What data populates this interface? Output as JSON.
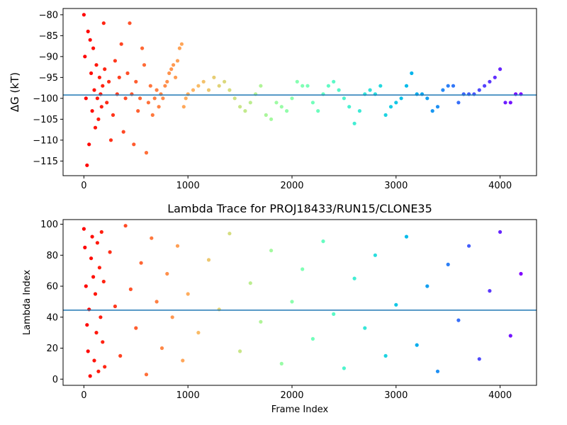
{
  "chart_data": [
    {
      "type": "scatter",
      "title": "",
      "xlabel": "",
      "ylabel": "ΔG (kT)",
      "xlim": [
        -200,
        4350
      ],
      "ylim": [
        -118.5,
        -78.5
      ],
      "xticks": [
        0,
        1000,
        2000,
        3000,
        4000
      ],
      "yticks": [
        -80,
        -85,
        -90,
        -95,
        -100,
        -105,
        -110,
        -115
      ],
      "hline": -99.2,
      "hline_color": "#1f77b4",
      "colormap": "rainbow (red at frame 0 to violet at last frame)",
      "x_range": [
        0,
        4200
      ],
      "series": [
        {
          "name": "",
          "points": [
            [
              0,
              -80
            ],
            [
              10,
              -90
            ],
            [
              20,
              -100
            ],
            [
              30,
              -116
            ],
            [
              40,
              -84
            ],
            [
              50,
              -111
            ],
            [
              60,
              -86
            ],
            [
              70,
              -94
            ],
            [
              80,
              -103
            ],
            [
              90,
              -88
            ],
            [
              100,
              -98
            ],
            [
              110,
              -107
            ],
            [
              120,
              -92
            ],
            [
              130,
              -100
            ],
            [
              140,
              -105
            ],
            [
              150,
              -95
            ],
            [
              160,
              -99
            ],
            [
              170,
              -102
            ],
            [
              180,
              -97
            ],
            [
              190,
              -82
            ],
            [
              200,
              -93
            ],
            [
              220,
              -101
            ],
            [
              240,
              -96
            ],
            [
              260,
              -110
            ],
            [
              280,
              -104
            ],
            [
              300,
              -91
            ],
            [
              320,
              -99
            ],
            [
              340,
              -95
            ],
            [
              360,
              -87
            ],
            [
              380,
              -108
            ],
            [
              400,
              -100
            ],
            [
              420,
              -94
            ],
            [
              440,
              -82
            ],
            [
              460,
              -99
            ],
            [
              480,
              -111
            ],
            [
              500,
              -96
            ],
            [
              520,
              -103
            ],
            [
              540,
              -100
            ],
            [
              560,
              -88
            ],
            [
              580,
              -92
            ],
            [
              600,
              -113
            ],
            [
              620,
              -101
            ],
            [
              640,
              -97
            ],
            [
              660,
              -104
            ],
            [
              680,
              -100
            ],
            [
              700,
              -98
            ],
            [
              720,
              -102
            ],
            [
              740,
              -99
            ],
            [
              760,
              -100
            ],
            [
              780,
              -97
            ],
            [
              800,
              -96
            ],
            [
              820,
              -94
            ],
            [
              840,
              -93
            ],
            [
              860,
              -92
            ],
            [
              880,
              -95
            ],
            [
              900,
              -91
            ],
            [
              920,
              -88
            ],
            [
              940,
              -87
            ],
            [
              960,
              -102
            ],
            [
              980,
              -100
            ],
            [
              1000,
              -99
            ],
            [
              1050,
              -98
            ],
            [
              1100,
              -97
            ],
            [
              1150,
              -96
            ],
            [
              1200,
              -98
            ],
            [
              1250,
              -95
            ],
            [
              1300,
              -97
            ],
            [
              1350,
              -96
            ],
            [
              1400,
              -98
            ],
            [
              1450,
              -100
            ],
            [
              1500,
              -102
            ],
            [
              1550,
              -103
            ],
            [
              1600,
              -101
            ],
            [
              1650,
              -99
            ],
            [
              1700,
              -97
            ],
            [
              1750,
              -104
            ],
            [
              1800,
              -105
            ],
            [
              1850,
              -101
            ],
            [
              1900,
              -102
            ],
            [
              1950,
              -103
            ],
            [
              2000,
              -100
            ],
            [
              2050,
              -96
            ],
            [
              2100,
              -97
            ],
            [
              2150,
              -97
            ],
            [
              2200,
              -101
            ],
            [
              2250,
              -103
            ],
            [
              2300,
              -99
            ],
            [
              2350,
              -97
            ],
            [
              2400,
              -96
            ],
            [
              2450,
              -98
            ],
            [
              2500,
              -100
            ],
            [
              2550,
              -102
            ],
            [
              2600,
              -106
            ],
            [
              2650,
              -103
            ],
            [
              2700,
              -99
            ],
            [
              2750,
              -98
            ],
            [
              2800,
              -99
            ],
            [
              2850,
              -97
            ],
            [
              2900,
              -104
            ],
            [
              2950,
              -102
            ],
            [
              3000,
              -101
            ],
            [
              3050,
              -100
            ],
            [
              3100,
              -97
            ],
            [
              3150,
              -94
            ],
            [
              3200,
              -99
            ],
            [
              3250,
              -99
            ],
            [
              3300,
              -100
            ],
            [
              3350,
              -103
            ],
            [
              3400,
              -102
            ],
            [
              3450,
              -98
            ],
            [
              3500,
              -97
            ],
            [
              3550,
              -97
            ],
            [
              3600,
              -101
            ],
            [
              3650,
              -99
            ],
            [
              3700,
              -99
            ],
            [
              3750,
              -99
            ],
            [
              3800,
              -98
            ],
            [
              3850,
              -97
            ],
            [
              3900,
              -96
            ],
            [
              3950,
              -95
            ],
            [
              4000,
              -93
            ],
            [
              4050,
              -101
            ],
            [
              4100,
              -101
            ],
            [
              4150,
              -99
            ],
            [
              4200,
              -99
            ]
          ]
        }
      ]
    },
    {
      "type": "scatter",
      "title": "Lambda Trace for PROJ18433/RUN15/CLONE35",
      "xlabel": "Frame Index",
      "ylabel": "Lambda Index",
      "xlim": [
        -200,
        4350
      ],
      "ylim": [
        -4,
        103
      ],
      "xticks": [
        0,
        1000,
        2000,
        3000,
        4000
      ],
      "yticks": [
        0,
        20,
        40,
        60,
        80,
        100
      ],
      "hline": 44.5,
      "hline_color": "#1f77b4",
      "colormap": "rainbow (red at frame 0 to violet at last frame)",
      "x_range": [
        0,
        4200
      ],
      "series": [
        {
          "name": "",
          "points": [
            [
              0,
              97
            ],
            [
              10,
              85
            ],
            [
              20,
              60
            ],
            [
              30,
              35
            ],
            [
              40,
              18
            ],
            [
              50,
              45
            ],
            [
              60,
              2
            ],
            [
              70,
              78
            ],
            [
              80,
              92
            ],
            [
              90,
              66
            ],
            [
              100,
              12
            ],
            [
              110,
              55
            ],
            [
              120,
              30
            ],
            [
              130,
              88
            ],
            [
              140,
              5
            ],
            [
              150,
              72
            ],
            [
              160,
              40
            ],
            [
              170,
              95
            ],
            [
              180,
              24
            ],
            [
              190,
              63
            ],
            [
              200,
              8
            ],
            [
              250,
              82
            ],
            [
              300,
              47
            ],
            [
              350,
              15
            ],
            [
              400,
              99
            ],
            [
              450,
              58
            ],
            [
              500,
              33
            ],
            [
              550,
              75
            ],
            [
              600,
              3
            ],
            [
              650,
              91
            ],
            [
              700,
              50
            ],
            [
              750,
              20
            ],
            [
              800,
              68
            ],
            [
              850,
              40
            ],
            [
              900,
              86
            ],
            [
              950,
              12
            ],
            [
              1000,
              55
            ],
            [
              1100,
              30
            ],
            [
              1200,
              77
            ],
            [
              1300,
              45
            ],
            [
              1400,
              94
            ],
            [
              1500,
              18
            ],
            [
              1600,
              62
            ],
            [
              1700,
              37
            ],
            [
              1800,
              83
            ],
            [
              1900,
              10
            ],
            [
              2000,
              50
            ],
            [
              2100,
              71
            ],
            [
              2200,
              26
            ],
            [
              2300,
              89
            ],
            [
              2400,
              42
            ],
            [
              2500,
              7
            ],
            [
              2600,
              65
            ],
            [
              2700,
              33
            ],
            [
              2800,
              80
            ],
            [
              2900,
              15
            ],
            [
              3000,
              48
            ],
            [
              3100,
              92
            ],
            [
              3200,
              22
            ],
            [
              3300,
              60
            ],
            [
              3400,
              5
            ],
            [
              3500,
              74
            ],
            [
              3600,
              38
            ],
            [
              3700,
              86
            ],
            [
              3800,
              13
            ],
            [
              3900,
              57
            ],
            [
              4000,
              95
            ],
            [
              4100,
              28
            ],
            [
              4200,
              68
            ]
          ]
        }
      ]
    }
  ]
}
